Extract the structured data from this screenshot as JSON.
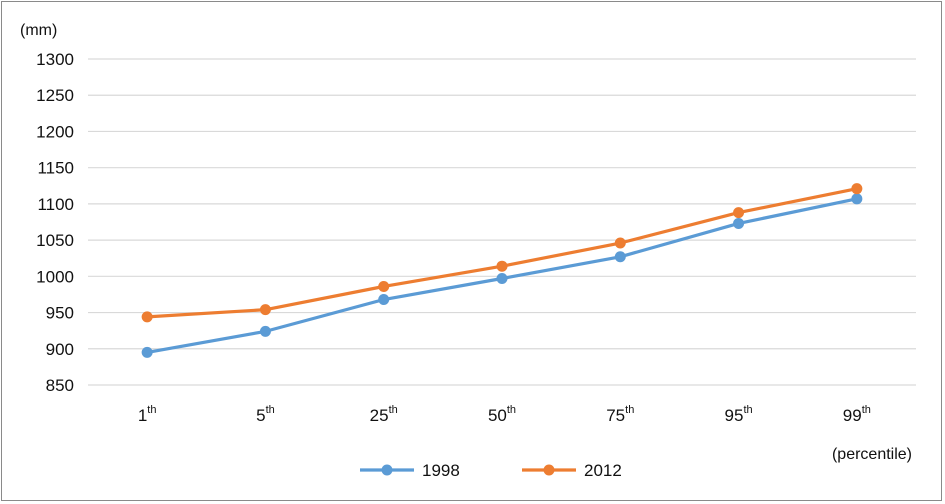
{
  "chart_data": {
    "type": "line",
    "ylabel": "(mm)",
    "xlabel": "(percentile)",
    "ylim": [
      850,
      1300
    ],
    "y_ticks": [
      "850",
      "900",
      "950",
      "1000",
      "1050",
      "1100",
      "1150",
      "1200",
      "1250",
      "1300"
    ],
    "categories": [
      {
        "base": "1",
        "sup": "th"
      },
      {
        "base": "5",
        "sup": "th"
      },
      {
        "base": "25",
        "sup": "th"
      },
      {
        "base": "50",
        "sup": "th"
      },
      {
        "base": "75",
        "sup": "th"
      },
      {
        "base": "95",
        "sup": "th"
      },
      {
        "base": "99",
        "sup": "th"
      }
    ],
    "series": [
      {
        "name": "1998",
        "color": "#5b9bd5",
        "values": [
          895,
          924,
          968,
          997,
          1027,
          1073,
          1107
        ]
      },
      {
        "name": "2012",
        "color": "#ed7d31",
        "values": [
          944,
          954,
          986,
          1014,
          1046,
          1088,
          1121
        ]
      }
    ],
    "grid": true,
    "legend_position": "bottom"
  }
}
